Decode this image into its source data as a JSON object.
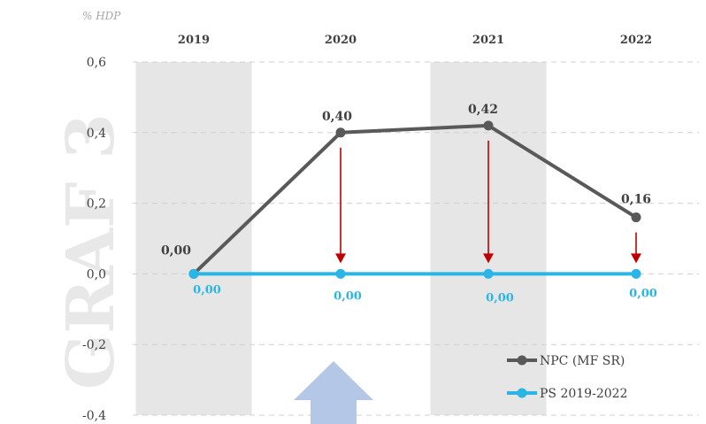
{
  "chart_data": {
    "type": "line",
    "watermark": "GRAF 3",
    "unit_label": "% HDP",
    "categories": [
      "2019",
      "2020",
      "2021",
      "2022"
    ],
    "ylim": [
      -0.4,
      0.6
    ],
    "yticks": [
      "0,6",
      "0,4",
      "0,2",
      "0,0",
      "-0,2",
      "-0,4"
    ],
    "ytick_values": [
      0.6,
      0.4,
      0.2,
      0.0,
      -0.2,
      -0.4
    ],
    "grid": true,
    "legend_position": "bottom-right",
    "series": [
      {
        "name": "NPC (MF SR)",
        "values": [
          0.0,
          0.4,
          0.42,
          0.16
        ],
        "labels": [
          "0,00",
          "0,40",
          "0,42",
          "0,16"
        ],
        "color": "#595959"
      },
      {
        "name": "PS 2019-2022",
        "values": [
          0.0,
          0.0,
          0.0,
          0.0
        ],
        "labels": [
          "0,00",
          "0,00",
          "0,00",
          "0,00"
        ],
        "color": "#29b6e6"
      }
    ],
    "colors": {
      "shade": "#e6e6e6",
      "arrow": "#c00000",
      "up_arrow": "#b4c7e7"
    }
  }
}
